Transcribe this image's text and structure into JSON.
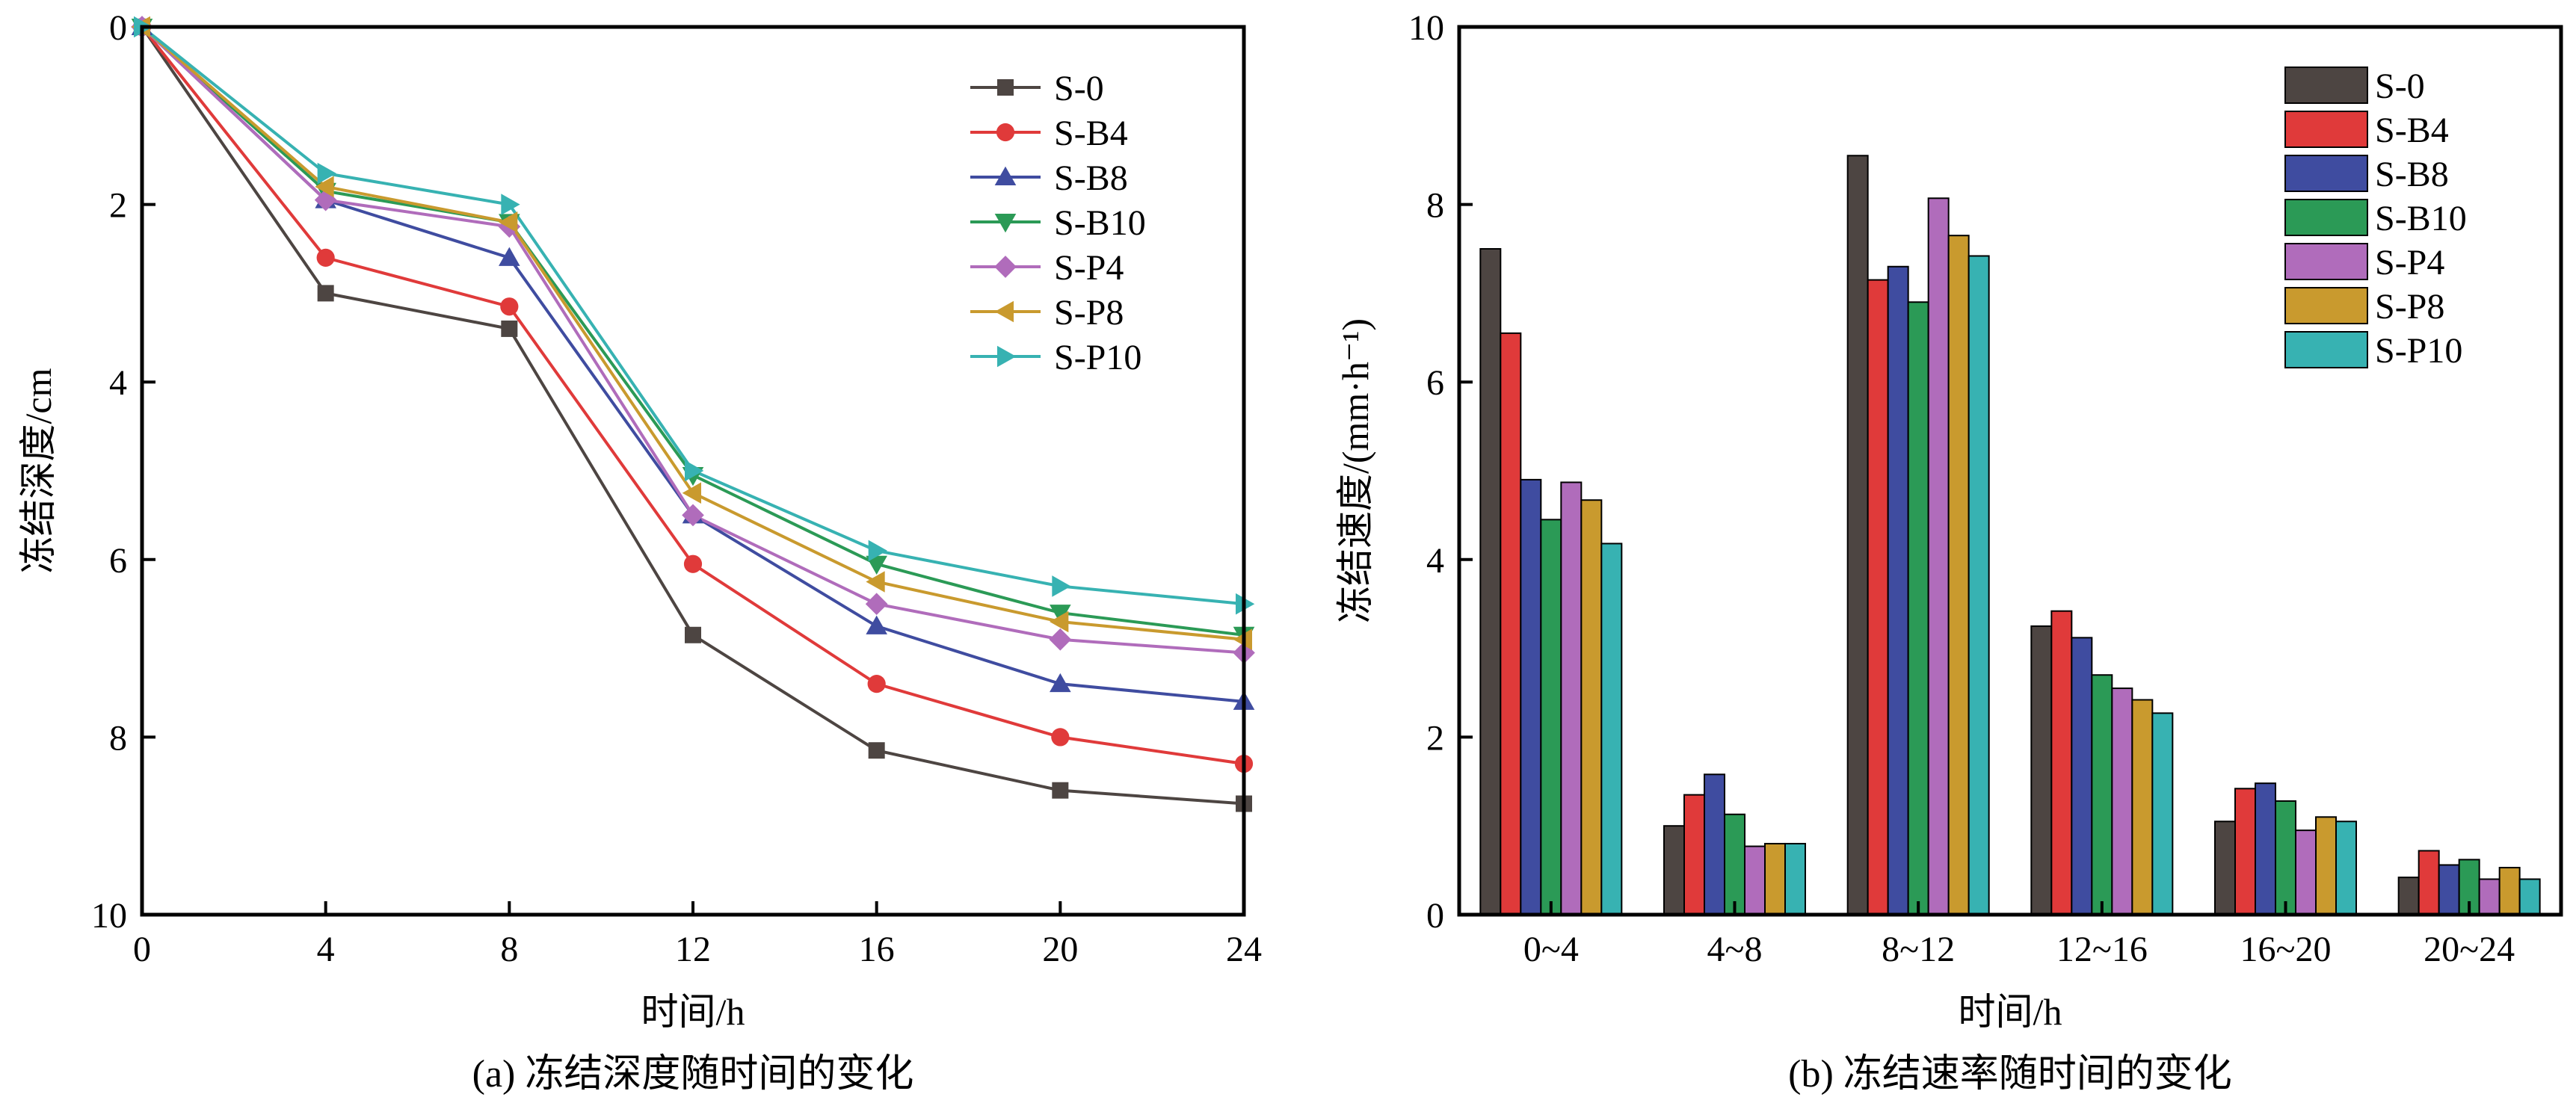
{
  "chart_data": [
    {
      "type": "line",
      "caption": "(a) 冻结深度随时间的变化",
      "xlabel": "时间/h",
      "ylabel": "冻结深度/cm",
      "x": [
        0,
        4,
        8,
        12,
        16,
        20,
        24
      ],
      "xlim": [
        0,
        24
      ],
      "ylim": [
        0,
        10
      ],
      "y_inverted": true,
      "xticks": [
        0,
        4,
        8,
        12,
        16,
        20,
        24
      ],
      "yticks": [
        0,
        2,
        4,
        6,
        8,
        10
      ],
      "grid": false,
      "legend_position": "top-right",
      "series": [
        {
          "name": "S-0",
          "color": "#4d4542",
          "marker": "square",
          "values": [
            0,
            3.0,
            3.4,
            6.85,
            8.15,
            8.6,
            8.75
          ]
        },
        {
          "name": "S-B4",
          "color": "#e03a3a",
          "marker": "circle",
          "values": [
            0,
            2.6,
            3.15,
            6.05,
            7.4,
            8.0,
            8.3
          ]
        },
        {
          "name": "S-B8",
          "color": "#3f4ca0",
          "marker": "triangle-up",
          "values": [
            0,
            1.95,
            2.6,
            5.5,
            6.75,
            7.4,
            7.6
          ]
        },
        {
          "name": "S-B10",
          "color": "#2b9a56",
          "marker": "triangle-down",
          "values": [
            0,
            1.85,
            2.2,
            5.05,
            6.05,
            6.6,
            6.85
          ]
        },
        {
          "name": "S-P4",
          "color": "#b06cbb",
          "marker": "diamond",
          "values": [
            0,
            1.95,
            2.25,
            5.5,
            6.5,
            6.9,
            7.05
          ]
        },
        {
          "name": "S-P8",
          "color": "#c99a2e",
          "marker": "triangle-left",
          "values": [
            0,
            1.8,
            2.2,
            5.25,
            6.25,
            6.7,
            6.9
          ]
        },
        {
          "name": "S-P10",
          "color": "#37b2b2",
          "marker": "triangle-right",
          "values": [
            0,
            1.65,
            2.0,
            5.0,
            5.9,
            6.3,
            6.5
          ]
        }
      ]
    },
    {
      "type": "bar",
      "caption": "(b) 冻结速率随时间的变化",
      "xlabel": "时间/h",
      "ylabel": "冻结速度/(mm·h⁻¹)",
      "categories": [
        "0~4",
        "4~8",
        "8~12",
        "12~16",
        "16~20",
        "20~24"
      ],
      "ylim": [
        0,
        10
      ],
      "yticks": [
        0,
        2,
        4,
        6,
        8,
        10
      ],
      "grid": false,
      "legend_position": "top-right",
      "series": [
        {
          "name": "S-0",
          "color": "#4d4542",
          "values": [
            7.5,
            1.0,
            8.55,
            3.25,
            1.05,
            0.42
          ]
        },
        {
          "name": "S-B4",
          "color": "#e03a3a",
          "values": [
            6.55,
            1.35,
            7.15,
            3.42,
            1.42,
            0.72
          ]
        },
        {
          "name": "S-B8",
          "color": "#3f4ca0",
          "values": [
            4.9,
            1.58,
            7.3,
            3.12,
            1.48,
            0.56
          ]
        },
        {
          "name": "S-B10",
          "color": "#2b9a56",
          "values": [
            4.45,
            1.13,
            6.9,
            2.7,
            1.28,
            0.62
          ]
        },
        {
          "name": "S-P4",
          "color": "#b06cbb",
          "values": [
            4.87,
            0.77,
            8.07,
            2.55,
            0.95,
            0.4
          ]
        },
        {
          "name": "S-P8",
          "color": "#c99a2e",
          "values": [
            4.67,
            0.8,
            7.65,
            2.42,
            1.1,
            0.53
          ]
        },
        {
          "name": "S-P10",
          "color": "#37b2b2",
          "values": [
            4.18,
            0.8,
            7.42,
            2.27,
            1.05,
            0.4
          ]
        }
      ]
    }
  ]
}
